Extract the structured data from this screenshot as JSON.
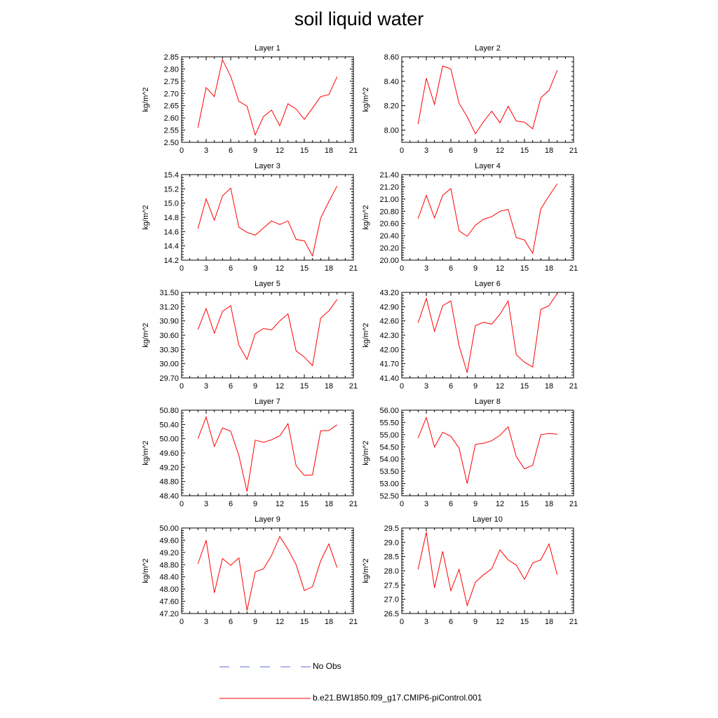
{
  "title": "soil liquid water",
  "colors": {
    "model_line": "#ff0000",
    "obs_line": "#5a6fd6",
    "axis": "#000000"
  },
  "legend": {
    "entries": [
      {
        "label": "No Obs",
        "style": "dashed",
        "color": "#5a6fd6"
      },
      {
        "label": "b.e21.BW1850.f09_g17.CMIP6-piControl.001",
        "style": "solid",
        "color": "#ff0000"
      }
    ]
  },
  "chart_data": [
    {
      "type": "line",
      "title": "Layer 1",
      "ylabel": "kg/m^2",
      "xlim": [
        0,
        21
      ],
      "xticks": [
        0,
        3,
        6,
        9,
        12,
        15,
        18,
        21
      ],
      "ylim": [
        2.5,
        2.85
      ],
      "yticks": [
        "2.50",
        "2.55",
        "2.60",
        "2.65",
        "2.70",
        "2.75",
        "2.80",
        "2.85"
      ],
      "x": [
        2,
        3,
        4,
        5,
        6,
        7,
        8,
        9,
        10,
        11,
        12,
        13,
        14,
        15,
        16,
        17,
        18,
        19
      ],
      "series": [
        {
          "name": "b.e21.BW1850.f09_g17.CMIP6-piControl.001",
          "values": [
            2.56,
            2.724,
            2.687,
            2.838,
            2.77,
            2.668,
            2.648,
            2.53,
            2.605,
            2.632,
            2.568,
            2.658,
            2.636,
            2.594,
            2.64,
            2.687,
            2.695,
            2.768
          ]
        }
      ]
    },
    {
      "type": "line",
      "title": "Layer 2",
      "ylabel": "kg/m^2",
      "xlim": [
        0,
        21
      ],
      "xticks": [
        0,
        3,
        6,
        9,
        12,
        15,
        18,
        21
      ],
      "ylim": [
        7.9,
        8.6
      ],
      "yticks": [
        "8.00",
        "8.20",
        "8.40",
        "8.60"
      ],
      "x": [
        2,
        3,
        4,
        5,
        6,
        7,
        8,
        9,
        10,
        11,
        12,
        13,
        14,
        15,
        16,
        17,
        18,
        19
      ],
      "series": [
        {
          "name": "b.e21.BW1850.f09_g17.CMIP6-piControl.001",
          "values": [
            8.05,
            8.425,
            8.21,
            8.525,
            8.5,
            8.22,
            8.11,
            7.97,
            8.07,
            8.155,
            8.06,
            8.195,
            8.075,
            8.065,
            8.01,
            8.265,
            8.325,
            8.49
          ]
        }
      ]
    },
    {
      "type": "line",
      "title": "Layer 3",
      "ylabel": "kg/m^2",
      "xlim": [
        0,
        21
      ],
      "xticks": [
        0,
        3,
        6,
        9,
        12,
        15,
        18,
        21
      ],
      "ylim": [
        14.2,
        15.4
      ],
      "yticks": [
        "14.2",
        "14.4",
        "14.6",
        "14.8",
        "15.0",
        "15.2",
        "15.4"
      ],
      "x": [
        2,
        3,
        4,
        5,
        6,
        7,
        8,
        9,
        10,
        11,
        12,
        13,
        14,
        15,
        16,
        17,
        18,
        19
      ],
      "series": [
        {
          "name": "b.e21.BW1850.f09_g17.CMIP6-piControl.001",
          "values": [
            14.64,
            15.06,
            14.76,
            15.1,
            15.21,
            14.66,
            14.59,
            14.55,
            14.65,
            14.75,
            14.7,
            14.75,
            14.49,
            14.47,
            14.26,
            14.79,
            15.02,
            15.24
          ]
        }
      ]
    },
    {
      "type": "line",
      "title": "Layer 4",
      "ylabel": "kg/m^2",
      "xlim": [
        0,
        21
      ],
      "xticks": [
        0,
        3,
        6,
        9,
        12,
        15,
        18,
        21
      ],
      "ylim": [
        20.0,
        21.4
      ],
      "yticks": [
        "20.00",
        "20.20",
        "20.40",
        "20.60",
        "20.80",
        "21.00",
        "21.20",
        "21.40"
      ],
      "x": [
        2,
        3,
        4,
        5,
        6,
        7,
        8,
        9,
        10,
        11,
        12,
        13,
        14,
        15,
        16,
        17,
        18,
        19
      ],
      "series": [
        {
          "name": "b.e21.BW1850.f09_g17.CMIP6-piControl.001",
          "values": [
            20.68,
            21.06,
            20.69,
            21.06,
            21.17,
            20.48,
            20.39,
            20.57,
            20.67,
            20.71,
            20.8,
            20.83,
            20.37,
            20.33,
            20.11,
            20.84,
            21.05,
            21.25
          ]
        }
      ]
    },
    {
      "type": "line",
      "title": "Layer 5",
      "ylabel": "kg/m^2",
      "xlim": [
        0,
        21
      ],
      "xticks": [
        0,
        3,
        6,
        9,
        12,
        15,
        18,
        21
      ],
      "ylim": [
        29.7,
        31.5
      ],
      "yticks": [
        "29.70",
        "30.00",
        "30.30",
        "30.60",
        "30.90",
        "31.20",
        "31.50"
      ],
      "x": [
        2,
        3,
        4,
        5,
        6,
        7,
        8,
        9,
        10,
        11,
        12,
        13,
        14,
        15,
        16,
        17,
        18,
        19
      ],
      "series": [
        {
          "name": "b.e21.BW1850.f09_g17.CMIP6-piControl.001",
          "values": [
            30.72,
            31.16,
            30.64,
            31.1,
            31.22,
            30.39,
            30.09,
            30.63,
            30.74,
            30.71,
            30.9,
            31.05,
            30.27,
            30.14,
            29.96,
            30.96,
            31.11,
            31.35
          ]
        }
      ]
    },
    {
      "type": "line",
      "title": "Layer 6",
      "ylabel": "kg/m^2",
      "xlim": [
        0,
        21
      ],
      "xticks": [
        0,
        3,
        6,
        9,
        12,
        15,
        18,
        21
      ],
      "ylim": [
        41.4,
        43.2
      ],
      "yticks": [
        "41.40",
        "41.70",
        "42.00",
        "42.30",
        "42.60",
        "42.90",
        "43.20"
      ],
      "x": [
        2,
        3,
        4,
        5,
        6,
        7,
        8,
        9,
        10,
        11,
        12,
        13,
        14,
        15,
        16,
        17,
        18,
        19
      ],
      "series": [
        {
          "name": "b.e21.BW1850.f09_g17.CMIP6-piControl.001",
          "values": [
            42.56,
            43.07,
            42.38,
            42.92,
            43.02,
            42.08,
            41.51,
            42.5,
            42.57,
            42.53,
            42.74,
            43.02,
            41.89,
            41.73,
            41.63,
            42.84,
            42.92,
            43.18
          ]
        }
      ]
    },
    {
      "type": "line",
      "title": "Layer 7",
      "ylabel": "kg/m^2",
      "xlim": [
        0,
        21
      ],
      "xticks": [
        0,
        3,
        6,
        9,
        12,
        15,
        18,
        21
      ],
      "ylim": [
        48.4,
        50.8
      ],
      "yticks": [
        "48.40",
        "48.80",
        "49.20",
        "49.60",
        "50.00",
        "50.40",
        "50.80"
      ],
      "x": [
        2,
        3,
        4,
        5,
        6,
        7,
        8,
        9,
        10,
        11,
        12,
        13,
        14,
        15,
        16,
        17,
        18,
        19
      ],
      "series": [
        {
          "name": "b.e21.BW1850.f09_g17.CMIP6-piControl.001",
          "values": [
            50.0,
            50.61,
            49.78,
            50.3,
            50.21,
            49.53,
            48.52,
            49.96,
            49.9,
            49.97,
            50.08,
            50.42,
            49.24,
            48.97,
            48.98,
            50.22,
            50.23,
            50.39
          ]
        }
      ]
    },
    {
      "type": "line",
      "title": "Layer 8",
      "ylabel": "kg/m^2",
      "xlim": [
        0,
        21
      ],
      "xticks": [
        0,
        3,
        6,
        9,
        12,
        15,
        18,
        21
      ],
      "ylim": [
        52.5,
        56.0
      ],
      "yticks": [
        "52.50",
        "53.00",
        "53.50",
        "54.00",
        "54.50",
        "55.00",
        "55.50",
        "56.00"
      ],
      "x": [
        2,
        3,
        4,
        5,
        6,
        7,
        8,
        9,
        10,
        11,
        12,
        13,
        14,
        15,
        16,
        17,
        18,
        19
      ],
      "series": [
        {
          "name": "b.e21.BW1850.f09_g17.CMIP6-piControl.001",
          "values": [
            54.87,
            55.7,
            54.49,
            55.1,
            54.93,
            54.45,
            53.0,
            54.6,
            54.65,
            54.75,
            54.97,
            55.32,
            54.1,
            53.6,
            53.75,
            55.0,
            55.05,
            55.02
          ]
        }
      ]
    },
    {
      "type": "line",
      "title": "Layer 9",
      "ylabel": "kg/m^2",
      "xlim": [
        0,
        21
      ],
      "xticks": [
        0,
        3,
        6,
        9,
        12,
        15,
        18,
        21
      ],
      "ylim": [
        47.2,
        50.0
      ],
      "yticks": [
        "47.20",
        "47.60",
        "48.00",
        "48.40",
        "48.80",
        "49.20",
        "49.60",
        "50.00"
      ],
      "x": [
        2,
        3,
        4,
        5,
        6,
        7,
        8,
        9,
        10,
        11,
        12,
        13,
        14,
        15,
        16,
        17,
        18,
        19
      ],
      "series": [
        {
          "name": "b.e21.BW1850.f09_g17.CMIP6-piControl.001",
          "values": [
            48.83,
            49.6,
            47.88,
            49.0,
            48.78,
            49.02,
            47.3,
            48.56,
            48.66,
            49.1,
            49.72,
            49.3,
            48.8,
            47.95,
            48.08,
            48.92,
            49.48,
            48.7
          ]
        }
      ]
    },
    {
      "type": "line",
      "title": "Layer 10",
      "ylabel": "kg/m^2",
      "xlim": [
        0,
        21
      ],
      "xticks": [
        0,
        3,
        6,
        9,
        12,
        15,
        18,
        21
      ],
      "ylim": [
        26.5,
        29.5
      ],
      "yticks": [
        "26.5",
        "27.0",
        "27.5",
        "28.0",
        "28.5",
        "29.0",
        "29.5"
      ],
      "x": [
        2,
        3,
        4,
        5,
        6,
        7,
        8,
        9,
        10,
        11,
        12,
        13,
        14,
        15,
        16,
        17,
        18,
        19
      ],
      "series": [
        {
          "name": "b.e21.BW1850.f09_g17.CMIP6-piControl.001",
          "values": [
            28.05,
            29.35,
            27.4,
            28.68,
            27.3,
            28.05,
            26.78,
            27.6,
            27.86,
            28.07,
            28.73,
            28.38,
            28.2,
            27.7,
            28.27,
            28.38,
            28.94,
            27.86
          ]
        }
      ]
    }
  ]
}
